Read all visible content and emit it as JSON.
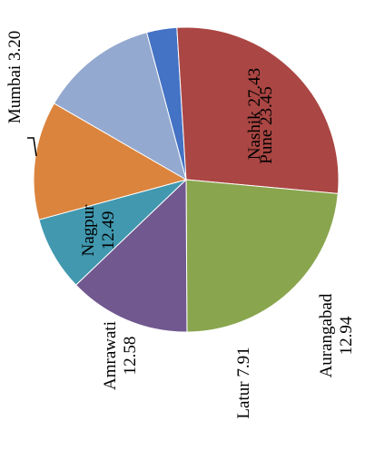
{
  "chart_data": {
    "type": "pie",
    "title": "",
    "categories": [
      "Mumbai",
      "Nashik",
      "Pune",
      "Aurangabad",
      "Latur",
      "Amrawati",
      "Nagpur"
    ],
    "values": [
      3.2,
      27.43,
      23.45,
      12.94,
      7.91,
      12.58,
      12.49
    ],
    "value_labels": [
      "3.20",
      "27.43",
      "23.45",
      "12.94",
      "7.91",
      "12.58",
      "12.49"
    ],
    "colors": [
      "#4472C4",
      "#AA4643",
      "#89A54E",
      "#71588F",
      "#4198AF",
      "#DB843D",
      "#93A9CF"
    ],
    "legend": "none",
    "data_labels": "category and value",
    "label_orientation": "rotated 90 degrees counter-clockwise"
  }
}
